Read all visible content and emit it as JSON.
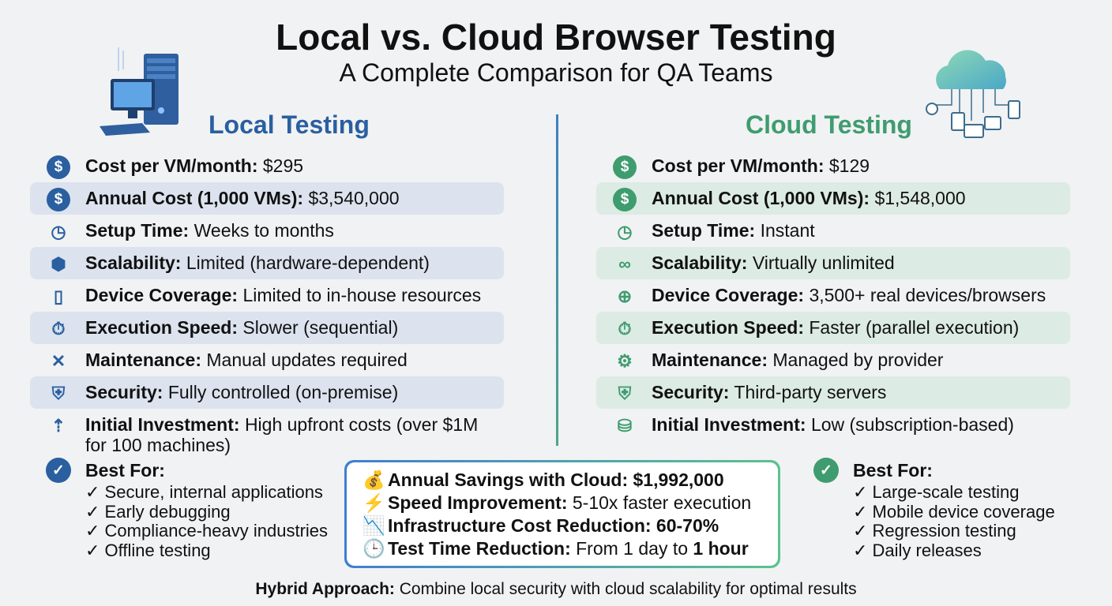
{
  "title": "Local vs. Cloud Browser Testing",
  "subtitle": "A Complete Comparison for QA Teams",
  "colors": {
    "local": "#2a5fa0",
    "cloud": "#3f9c6f",
    "local_highlight": "#dce3ee",
    "cloud_highlight": "#dcebe3"
  },
  "local": {
    "title": "Local Testing",
    "illustration": "desktop-computer-server",
    "rows": [
      {
        "icon": "dollar-icon",
        "label": "Cost per VM/month:",
        "value": "$295"
      },
      {
        "icon": "dollar-icon",
        "label": "Annual Cost (1,000 VMs):",
        "value": "$3,540,000"
      },
      {
        "icon": "clock-gear-icon",
        "label": "Setup Time:",
        "value": "Weeks to months"
      },
      {
        "icon": "scale-cube-icon",
        "label": "Scalability:",
        "value": "Limited (hardware-dependent)"
      },
      {
        "icon": "devices-icon",
        "label": "Device Coverage:",
        "value": "Limited to in-house resources"
      },
      {
        "icon": "stopwatch-icon",
        "label": "Execution Speed:",
        "value": "Slower (sequential)"
      },
      {
        "icon": "tools-icon",
        "label": "Maintenance:",
        "value": "Manual updates required"
      },
      {
        "icon": "shield-lock-icon",
        "label": "Security:",
        "value": "Fully controlled (on-premise)"
      },
      {
        "icon": "coins-up-icon",
        "label": "Initial Investment:",
        "value": "High upfront costs (over $1M for 100 machines)"
      }
    ],
    "best_for": {
      "title": "Best For:",
      "items": [
        "✓ Secure, internal applications",
        "✓ Early debugging",
        "✓ Compliance-heavy industries",
        "✓ Offline testing"
      ]
    }
  },
  "cloud": {
    "title": "Cloud Testing",
    "illustration": "cloud-network-devices",
    "rows": [
      {
        "icon": "dollar-icon",
        "label": "Cost per VM/month:",
        "value": "$129"
      },
      {
        "icon": "dollar-icon",
        "label": "Annual Cost (1,000 VMs):",
        "value": "$1,548,000"
      },
      {
        "icon": "clock-gear-icon",
        "label": "Setup Time:",
        "value": "Instant"
      },
      {
        "icon": "cloud-infinity-icon",
        "label": "Scalability:",
        "value": "Virtually unlimited"
      },
      {
        "icon": "globe-cursor-icon",
        "label": "Device Coverage:",
        "value": "3,500+ real devices/browsers"
      },
      {
        "icon": "stopwatch-icon",
        "label": "Execution Speed:",
        "value": "Faster (parallel execution)"
      },
      {
        "icon": "gear-wrench-icon",
        "label": "Maintenance:",
        "value": "Managed by provider"
      },
      {
        "icon": "shield-globe-icon",
        "label": "Security:",
        "value": "Third-party servers"
      },
      {
        "icon": "database-down-icon",
        "label": "Initial Investment:",
        "value": "Low (subscription-based)"
      }
    ],
    "best_for": {
      "title": "Best For:",
      "items": [
        "✓ Large-scale testing",
        "✓ Mobile device coverage",
        "✓ Regression testing",
        "✓ Daily releases"
      ]
    }
  },
  "summary": [
    {
      "emoji": "💰",
      "label": "Annual Savings with Cloud:",
      "value": "$1,992,000",
      "value_bold": true
    },
    {
      "emoji": "⚡",
      "label": "Speed Improvement:",
      "value": "5-10x faster execution",
      "value_bold": false
    },
    {
      "emoji": "📉",
      "label": "Infrastructure Cost Reduction:",
      "value": "60-70%",
      "value_bold": true
    },
    {
      "emoji": "🕒",
      "label": "Test Time Reduction:",
      "value": "From 1 day to",
      "value_suffix": "1 hour"
    }
  ],
  "footer": {
    "label": "Hybrid Approach:",
    "text": "Combine local security with cloud scalability for optimal results"
  }
}
